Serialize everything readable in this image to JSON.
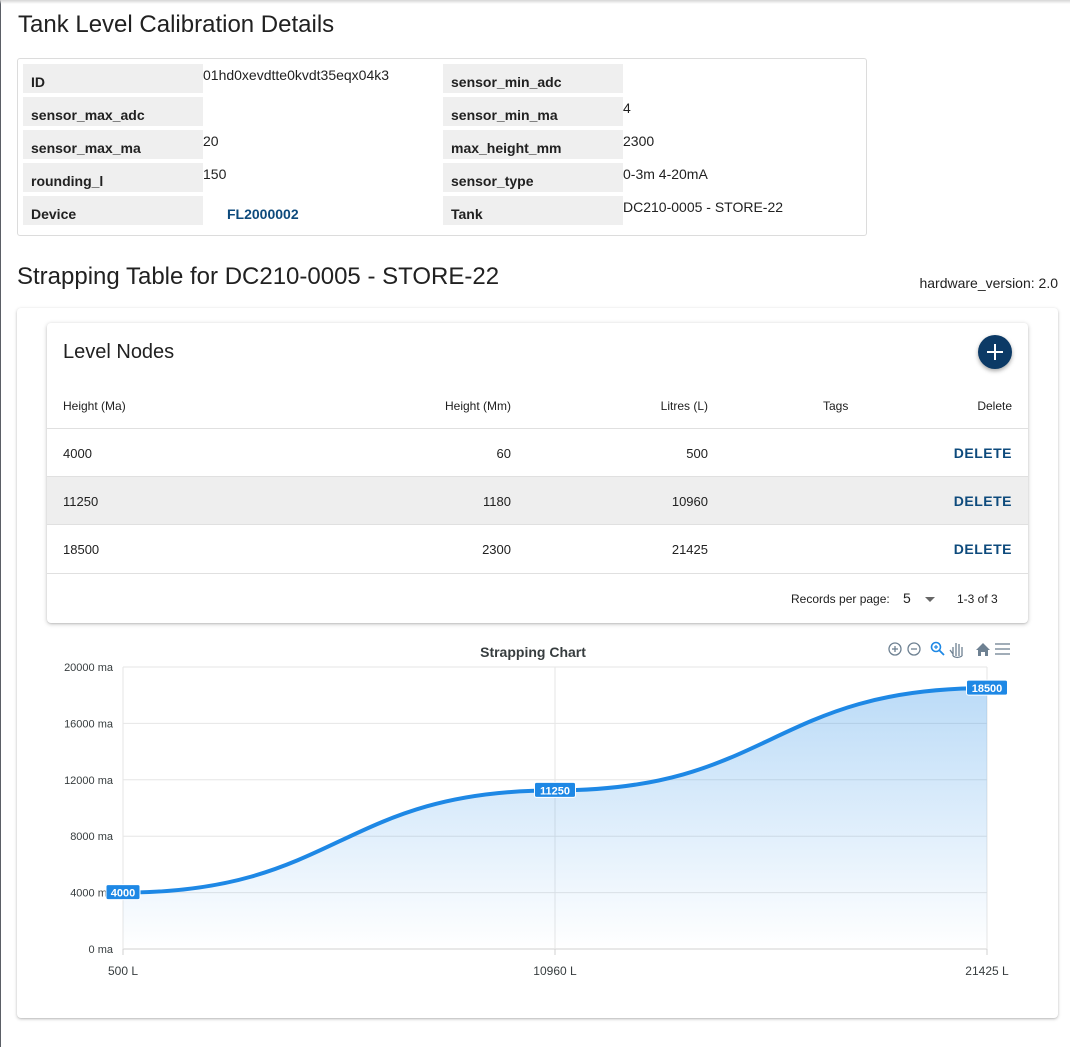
{
  "page_title": "Tank Level Calibration Details",
  "details": [
    {
      "label": "ID",
      "value": "01hd0xevdtte0kvdt35eqx04k3"
    },
    {
      "label": "sensor_min_adc",
      "value": ""
    },
    {
      "label": "sensor_max_adc",
      "value": ""
    },
    {
      "label": "sensor_min_ma",
      "value": "4"
    },
    {
      "label": "sensor_max_ma",
      "value": "20"
    },
    {
      "label": "max_height_mm",
      "value": "2300"
    },
    {
      "label": "rounding_l",
      "value": "150"
    },
    {
      "label": "sensor_type",
      "value": "0-3m 4-20mA"
    },
    {
      "label": "Device",
      "value": "FL2000002"
    },
    {
      "label": "Tank",
      "value": "DC210-0005 - STORE-22"
    }
  ],
  "strapping": {
    "title": "Strapping Table for DC210-0005 - STORE-22",
    "hardware_version": "hardware_version: 2.0"
  },
  "level_nodes": {
    "title": "Level Nodes",
    "add_icon": "plus-icon",
    "columns": [
      "Height (Ma)",
      "Height (Mm)",
      "Litres (L)",
      "Tags",
      "Delete"
    ],
    "rows": [
      {
        "height_ma": "4000",
        "height_mm": "60",
        "litres": "500",
        "tags": "",
        "delete_label": "DELETE"
      },
      {
        "height_ma": "11250",
        "height_mm": "1180",
        "litres": "10960",
        "tags": "",
        "delete_label": "DELETE"
      },
      {
        "height_ma": "18500",
        "height_mm": "2300",
        "litres": "21425",
        "tags": "",
        "delete_label": "DELETE"
      }
    ],
    "pagination": {
      "rows_per_page_label": "Records per page:",
      "rows_per_page_value": "5",
      "range": "1-3 of 3"
    }
  },
  "toolbar_icons": [
    "zoom-in-icon",
    "zoom-out-icon",
    "zoom-selection-icon",
    "pan-hand-icon",
    "home-reset-icon",
    "menu-icon"
  ],
  "colors": {
    "accent": "#0d4a7c",
    "line": "#1e88e5",
    "button": "#0c3a66"
  },
  "chart_data": {
    "type": "area",
    "title": "Strapping Chart",
    "x": [
      "500 L",
      "10960 L",
      "21425 L"
    ],
    "series": [
      {
        "values": [
          4000,
          11250,
          18500
        ],
        "data_labels": [
          "4000",
          "11250",
          "18500"
        ]
      }
    ],
    "y_ticks": [
      "0 ma",
      "4000 ma",
      "8000 ma",
      "12000 ma",
      "16000 ma",
      "20000 ma"
    ],
    "ylim": [
      0,
      20000
    ],
    "grid": true,
    "legend": "none"
  }
}
